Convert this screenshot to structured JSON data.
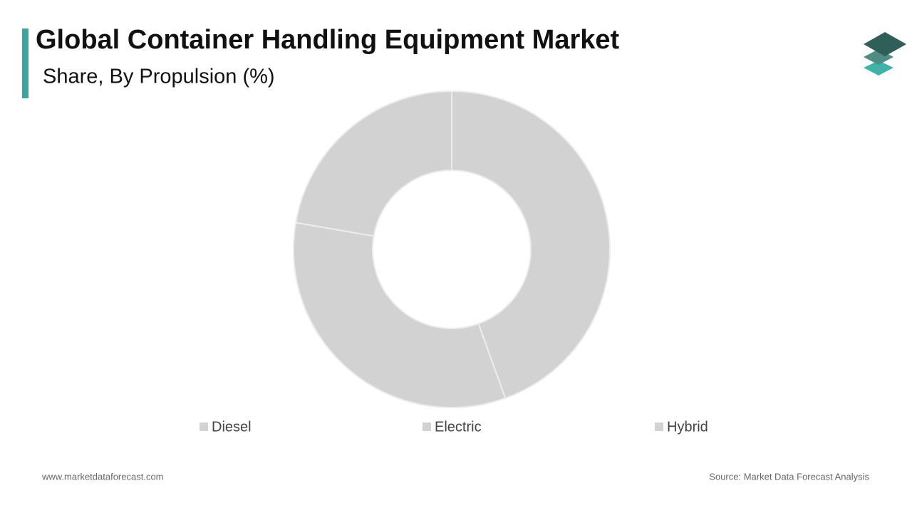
{
  "chart_data": {
    "type": "donut",
    "title": "Global Container Handling Equipment Market",
    "subtitle": "Share, By Propulsion (%)",
    "categories": [
      "Diesel",
      "Electric",
      "Hybrid"
    ],
    "values": [
      44.5,
      33.2,
      22.3
    ],
    "colors": [
      "#d3d2d2",
      "#d3d2d2",
      "#d3d2d2"
    ]
  },
  "footer": {
    "website": "www.marketdataforecast.com",
    "source": "Source: Market Data Forecast Analysis"
  }
}
